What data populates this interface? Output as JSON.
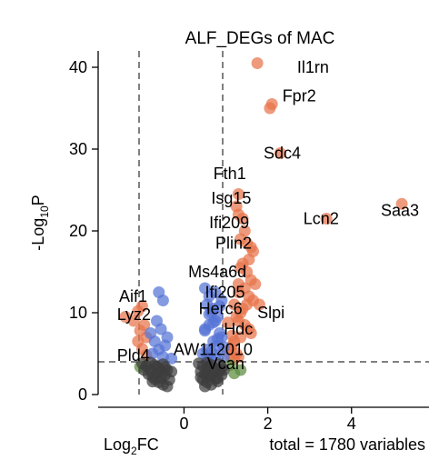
{
  "chart_data": {
    "type": "scatter",
    "title": "ALF_DEGs of MAC",
    "xlabel": "Log2FC",
    "ylabel": "-Log10P",
    "caption": "total = 1780 variables",
    "xlim": [
      -2.05,
      5.85
    ],
    "ylim": [
      0,
      42
    ],
    "xticks": [
      0,
      2,
      4
    ],
    "yticks": [
      0,
      10,
      20,
      30,
      40
    ],
    "thresholds": {
      "log2fc": [
        -1,
        1
      ],
      "neg_log10p": 4
    },
    "grid": false,
    "legend": "none",
    "colors": {
      "up_sig": "#e8734a",
      "fc_only": "#5b8a3e",
      "p_only": "#5573d6",
      "ns": "#3d3d3d"
    },
    "series": [
      {
        "category": "up_sig",
        "x": [
          1.75,
          2.1,
          2.05,
          2.3,
          1.3,
          1.25,
          1.3,
          1.4,
          1.45,
          1.35,
          1.5,
          1.6,
          1.65,
          1.55,
          1.4,
          1.35,
          1.5,
          1.6,
          1.7,
          1.45,
          1.3,
          1.55,
          1.65,
          1.5,
          1.4,
          1.35,
          1.25,
          1.3,
          1.45,
          1.55,
          1.6,
          1.35,
          1.2,
          1.15,
          1.1,
          1.25,
          1.3,
          1.2,
          1.1,
          1.15,
          1.05,
          1.2,
          1.3,
          1.8,
          3.4,
          5.2,
          -1.0,
          -1.1,
          -1.4,
          -1.2,
          -0.95,
          -1.05,
          -0.9,
          -1.1,
          -1.0,
          -0.9
        ],
        "y": [
          40.5,
          35.5,
          35.0,
          29.5,
          24.5,
          23.0,
          22.0,
          21.5,
          20.0,
          19.0,
          18.5,
          18.0,
          17.5,
          16.5,
          16.0,
          15.5,
          15.0,
          14.0,
          13.5,
          13.0,
          12.5,
          12.0,
          11.5,
          11.0,
          10.5,
          10.0,
          9.5,
          9.0,
          8.5,
          8.0,
          7.5,
          7.0,
          6.5,
          6.0,
          5.5,
          5.0,
          4.6,
          4.3,
          4.8,
          7.2,
          8.8,
          11.0,
          13.5,
          11.0,
          21.5,
          23.3,
          10.8,
          10.2,
          9.5,
          9.0,
          8.5,
          7.8,
          7.0,
          6.5,
          5.6,
          4.8
        ]
      },
      {
        "category": "p_only",
        "x": [
          -0.6,
          -0.5,
          -0.65,
          -0.55,
          -0.7,
          -0.4,
          -0.6,
          -0.75,
          -0.5,
          -0.45,
          -0.8,
          -0.3,
          0.5,
          0.6,
          0.55,
          0.7,
          0.65,
          0.8,
          0.75,
          0.6,
          0.5,
          0.85,
          0.9,
          0.7,
          0.8,
          0.55,
          0.45,
          0.95,
          0.65,
          0.75,
          0.9,
          0.85,
          0.6,
          0.7,
          0.5,
          0.8,
          0.95,
          0.65,
          0.75,
          0.55
        ],
        "y": [
          12.5,
          11.5,
          9.0,
          8.0,
          6.5,
          7.0,
          5.5,
          5.0,
          4.6,
          6.0,
          7.5,
          4.4,
          13.0,
          12.0,
          11.0,
          10.5,
          10.0,
          9.5,
          9.0,
          8.5,
          8.0,
          7.5,
          7.0,
          6.5,
          6.0,
          5.5,
          5.0,
          4.6,
          4.4,
          12.5,
          11.5,
          10.8,
          9.8,
          8.8,
          7.8,
          6.8,
          5.8,
          5.2,
          4.8,
          4.5
        ]
      },
      {
        "category": "fc_only",
        "x": [
          1.35,
          1.1,
          1.2,
          -1.05
        ],
        "y": [
          3.0,
          3.6,
          2.6,
          3.4
        ]
      },
      {
        "category": "ns",
        "x": [
          -1.0,
          -0.9,
          -0.8,
          -0.7,
          -0.6,
          -0.5,
          -0.4,
          -0.3,
          -0.85,
          -0.75,
          -0.65,
          -0.55,
          -0.45,
          -0.35,
          -0.95,
          -0.6,
          -0.5,
          -0.7,
          -0.8,
          -0.4,
          -0.65,
          -0.55,
          -0.75,
          -0.45,
          0.35,
          0.45,
          0.55,
          0.65,
          0.75,
          0.85,
          0.95,
          0.4,
          0.5,
          0.6,
          0.7,
          0.8,
          0.9,
          0.45,
          0.55,
          0.65,
          0.75,
          0.85,
          0.5,
          0.6,
          0.7,
          0.8,
          0.9,
          0.4,
          0.55,
          0.65
        ],
        "y": [
          3.8,
          3.5,
          3.9,
          3.6,
          3.2,
          3.7,
          3.0,
          2.8,
          2.5,
          2.2,
          2.6,
          2.0,
          2.4,
          1.8,
          3.0,
          1.5,
          1.2,
          1.9,
          2.9,
          1.0,
          3.4,
          2.7,
          1.6,
          3.3,
          3.8,
          3.5,
          3.9,
          3.6,
          3.2,
          3.7,
          3.0,
          2.8,
          2.5,
          2.2,
          2.6,
          2.0,
          2.4,
          1.8,
          1.5,
          1.2,
          1.9,
          2.9,
          1.0,
          3.4,
          2.7,
          1.6,
          3.3,
          2.1,
          3.1,
          2.3
        ]
      }
    ],
    "annotations": [
      {
        "text": "Il1rn",
        "x": 2.7,
        "y": 40.0
      },
      {
        "text": "Fpr2",
        "x": 2.35,
        "y": 36.5
      },
      {
        "text": "Sdc4",
        "x": 1.9,
        "y": 29.5
      },
      {
        "text": "Fth1",
        "x": 0.7,
        "y": 27.0
      },
      {
        "text": "Isg15",
        "x": 0.65,
        "y": 24.0
      },
      {
        "text": "Lcn2",
        "x": 2.85,
        "y": 21.5
      },
      {
        "text": "Saa3",
        "x": 4.7,
        "y": 22.5
      },
      {
        "text": "Ifi209",
        "x": 0.6,
        "y": 21.0
      },
      {
        "text": "Plin2",
        "x": 0.75,
        "y": 18.5
      },
      {
        "text": "Ms4a6d",
        "x": 0.1,
        "y": 15.0
      },
      {
        "text": "Ifi205",
        "x": 0.5,
        "y": 12.5
      },
      {
        "text": "Aif1",
        "x": -1.55,
        "y": 12.0
      },
      {
        "text": "Herc6",
        "x": 0.35,
        "y": 10.5
      },
      {
        "text": "Slpi",
        "x": 1.75,
        "y": 10.0
      },
      {
        "text": "Lyz2",
        "x": -1.6,
        "y": 9.8
      },
      {
        "text": "Hdc",
        "x": 0.95,
        "y": 8.0
      },
      {
        "text": "AW112010",
        "x": -0.25,
        "y": 5.5
      },
      {
        "text": "Pld4",
        "x": -1.6,
        "y": 4.8
      },
      {
        "text": "Vcan",
        "x": 0.55,
        "y": 3.8
      }
    ]
  }
}
